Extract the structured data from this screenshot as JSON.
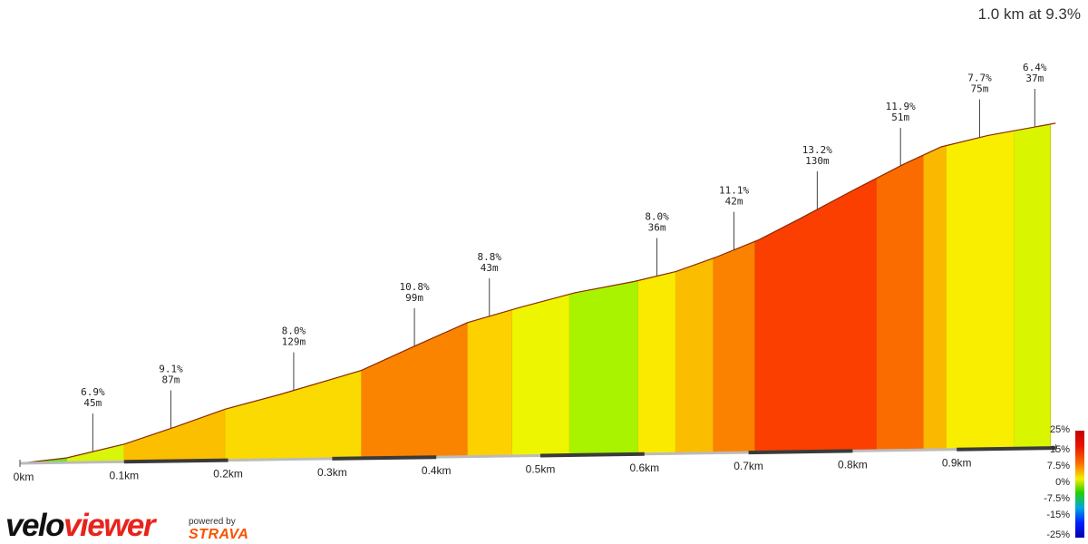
{
  "summary": "1.0 km at 9.3%",
  "branding": {
    "logo_velo": "velo",
    "logo_viewer": "viewer",
    "powered_by": "powered by",
    "strava": "STRAVA"
  },
  "chart_data": {
    "type": "area",
    "title": "",
    "xlabel": "",
    "ylabel": "",
    "xlim": [
      0,
      1.0
    ],
    "x_ticks": [
      "0km",
      "0.1km",
      "0.2km",
      "0.3km",
      "0.4km",
      "0.5km",
      "0.6km",
      "0.7km",
      "0.8km",
      "0.9km"
    ],
    "x_tick_values": [
      0,
      0.1,
      0.2,
      0.3,
      0.4,
      0.5,
      0.6,
      0.7,
      0.8,
      0.9
    ],
    "elevation_profile": [
      [
        0,
        0
      ],
      [
        0.045,
        1.2
      ],
      [
        0.1,
        4.4
      ],
      [
        0.15,
        8.6
      ],
      [
        0.197,
        12.8
      ],
      [
        0.25,
        16.3
      ],
      [
        0.328,
        22.0
      ],
      [
        0.38,
        28.0
      ],
      [
        0.43,
        33.6
      ],
      [
        0.48,
        37.2
      ],
      [
        0.533,
        40.7
      ],
      [
        0.59,
        43.3
      ],
      [
        0.63,
        45.6
      ],
      [
        0.668,
        49.0
      ],
      [
        0.71,
        53.3
      ],
      [
        0.75,
        58.5
      ],
      [
        0.8,
        65.3
      ],
      [
        0.85,
        71.8
      ],
      [
        0.885,
        75.9
      ],
      [
        0.93,
        78.6
      ],
      [
        0.995,
        81.4
      ]
    ],
    "gradient_bands": [
      {
        "from": 0.0,
        "to": 0.045,
        "color": "#66e61a"
      },
      {
        "from": 0.045,
        "to": 0.1,
        "color": "#d8f50a"
      },
      {
        "from": 0.1,
        "to": 0.197,
        "color": "#fbbf00"
      },
      {
        "from": 0.197,
        "to": 0.328,
        "color": "#fada00"
      },
      {
        "from": 0.328,
        "to": 0.43,
        "color": "#fa8400"
      },
      {
        "from": 0.43,
        "to": 0.473,
        "color": "#fdd000"
      },
      {
        "from": 0.473,
        "to": 0.528,
        "color": "#eef500"
      },
      {
        "from": 0.528,
        "to": 0.594,
        "color": "#a9f200"
      },
      {
        "from": 0.594,
        "to": 0.63,
        "color": "#faea00"
      },
      {
        "from": 0.63,
        "to": 0.666,
        "color": "#fbbd00"
      },
      {
        "from": 0.666,
        "to": 0.706,
        "color": "#fa8200"
      },
      {
        "from": 0.706,
        "to": 0.823,
        "color": "#fa3f00"
      },
      {
        "from": 0.823,
        "to": 0.868,
        "color": "#fb6c00"
      },
      {
        "from": 0.868,
        "to": 0.89,
        "color": "#fbb800"
      },
      {
        "from": 0.89,
        "to": 0.955,
        "color": "#f9ee00"
      },
      {
        "from": 0.955,
        "to": 0.99,
        "color": "#d9f500"
      }
    ],
    "segments": [
      {
        "x": 0.07,
        "grade": "6.9%",
        "length": "45m"
      },
      {
        "x": 0.145,
        "grade": "9.1%",
        "length": "87m"
      },
      {
        "x": 0.263,
        "grade": "8.0%",
        "length": "129m"
      },
      {
        "x": 0.379,
        "grade": "10.8%",
        "length": "99m"
      },
      {
        "x": 0.451,
        "grade": "8.8%",
        "length": "43m"
      },
      {
        "x": 0.612,
        "grade": "8.0%",
        "length": "36m"
      },
      {
        "x": 0.686,
        "grade": "11.1%",
        "length": "42m"
      },
      {
        "x": 0.766,
        "grade": "13.2%",
        "length": "130m"
      },
      {
        "x": 0.846,
        "grade": "11.9%",
        "length": "51m"
      },
      {
        "x": 0.922,
        "grade": "7.7%",
        "length": "75m"
      },
      {
        "x": 0.975,
        "grade": "6.4%",
        "length": "37m"
      }
    ],
    "legend": {
      "labels": [
        "25%",
        "15%",
        "7.5%",
        "0%",
        "-7.5%",
        "-15%",
        "-25%"
      ],
      "colors": [
        "#c40000",
        "#e81200",
        "#fa6a00",
        "#f5ef00",
        "#22d000",
        "#00a8e0",
        "#0020ff",
        "#0000b0"
      ]
    }
  }
}
